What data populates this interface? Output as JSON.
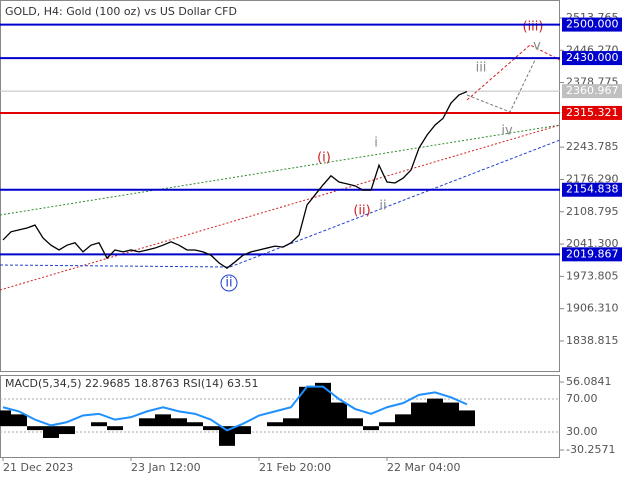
{
  "chart_data": [
    {
      "type": "line",
      "title": "GOLD, H4:  Gold (100 oz) vs US Dollar CFD",
      "categories": [
        "21 Dec 2023",
        null,
        null,
        null,
        null,
        null,
        null,
        null,
        null,
        null,
        null,
        null,
        null,
        null,
        null,
        null,
        "23 Jan 12:00",
        null,
        null,
        null,
        null,
        null,
        null,
        null,
        null,
        null,
        null,
        null,
        null,
        null,
        null,
        null,
        "21 Feb 20:00",
        null,
        null,
        null,
        null,
        null,
        null,
        null,
        null,
        null,
        null,
        null,
        null,
        null,
        null,
        null,
        "22 Mar 04:00",
        null,
        null,
        null,
        null,
        null,
        null,
        null,
        null,
        null,
        null
      ],
      "series": [
        {
          "color": "#000000",
          "values": [
            2050,
            2067,
            2071,
            2075,
            2081,
            2054,
            2039,
            2029,
            2039,
            2044,
            2025,
            2039,
            2044,
            2012,
            2029,
            2025,
            2029,
            2025,
            2029,
            2033,
            2039,
            2046,
            2039,
            2029,
            2029,
            2025,
            2018,
            2002,
            1991,
            2004,
            2018,
            2025,
            2029,
            2033,
            2037,
            2035,
            2044,
            2060,
            2123,
            2144,
            2165,
            2184,
            2171,
            2167,
            2163,
            2154,
            2154,
            2206,
            2171,
            2169,
            2179,
            2196,
            2242,
            2269,
            2290,
            2304,
            2336,
            2353,
            2360
          ]
        }
      ],
      "ylim": [
        1774,
        2540.9
      ],
      "yticks": [
        2513.765,
        {
          "value": 2446.27,
          "label": "2446.270"
        },
        2378.775,
        2243.785,
        {
          "value": 2176.29,
          "label": "2176.290"
        },
        2108.795,
        {
          "value": 2041.3,
          "label": "2041.300"
        },
        1973.805,
        {
          "value": 1906.31,
          "label": "1906.310"
        },
        1838.815
      ],
      "levels": [
        {
          "value": 2500,
          "label": "2500.000",
          "color": "#0000cc"
        },
        {
          "value": 2430,
          "label": "2430.000",
          "color": "#0000cc"
        },
        {
          "value": 2360.967,
          "color": "#c0c0c0"
        },
        {
          "value": 2315.321,
          "color": "#e00000"
        },
        {
          "value": 2154.838,
          "color": "#0000cc"
        },
        {
          "value": 2019.867,
          "color": "#0000cc"
        }
      ],
      "annotations": [
        "(iii)",
        "v",
        "iii",
        "iv",
        "(i)",
        "(ii)",
        "ii",
        "i",
        "ii"
      ]
    },
    {
      "type": "bar",
      "title": "MACD(5,34,5) 22.9685 18.8763 RSI(14) 63.51",
      "series": [
        {
          "color": "#000000",
          "values": [
            20,
            15,
            -5,
            -15,
            -10,
            0,
            5,
            -5,
            0,
            10,
            15,
            10,
            5,
            -5,
            -25,
            -10,
            0,
            5,
            10,
            50,
            55,
            30,
            10,
            -5,
            5,
            15,
            30,
            35,
            30,
            20
          ]
        },
        {
          "color": "#1e90ff",
          "axis": "y2",
          "values": [
            60,
            55,
            45,
            38,
            42,
            50,
            52,
            45,
            48,
            55,
            60,
            55,
            52,
            45,
            32,
            40,
            50,
            55,
            60,
            85,
            85,
            70,
            58,
            52,
            60,
            65,
            75,
            78,
            72,
            63.51
          ]
        }
      ],
      "ylim": [
        -39.15,
        64.98
      ],
      "yticks": [
        56.0841,
        -30.2571
      ],
      "y2lim": [
        -0.3,
        99.1
      ],
      "y2ticks": [
        {
          "value": 70,
          "label": "70.00"
        },
        {
          "value": 30,
          "label": "30.00"
        }
      ]
    }
  ]
}
